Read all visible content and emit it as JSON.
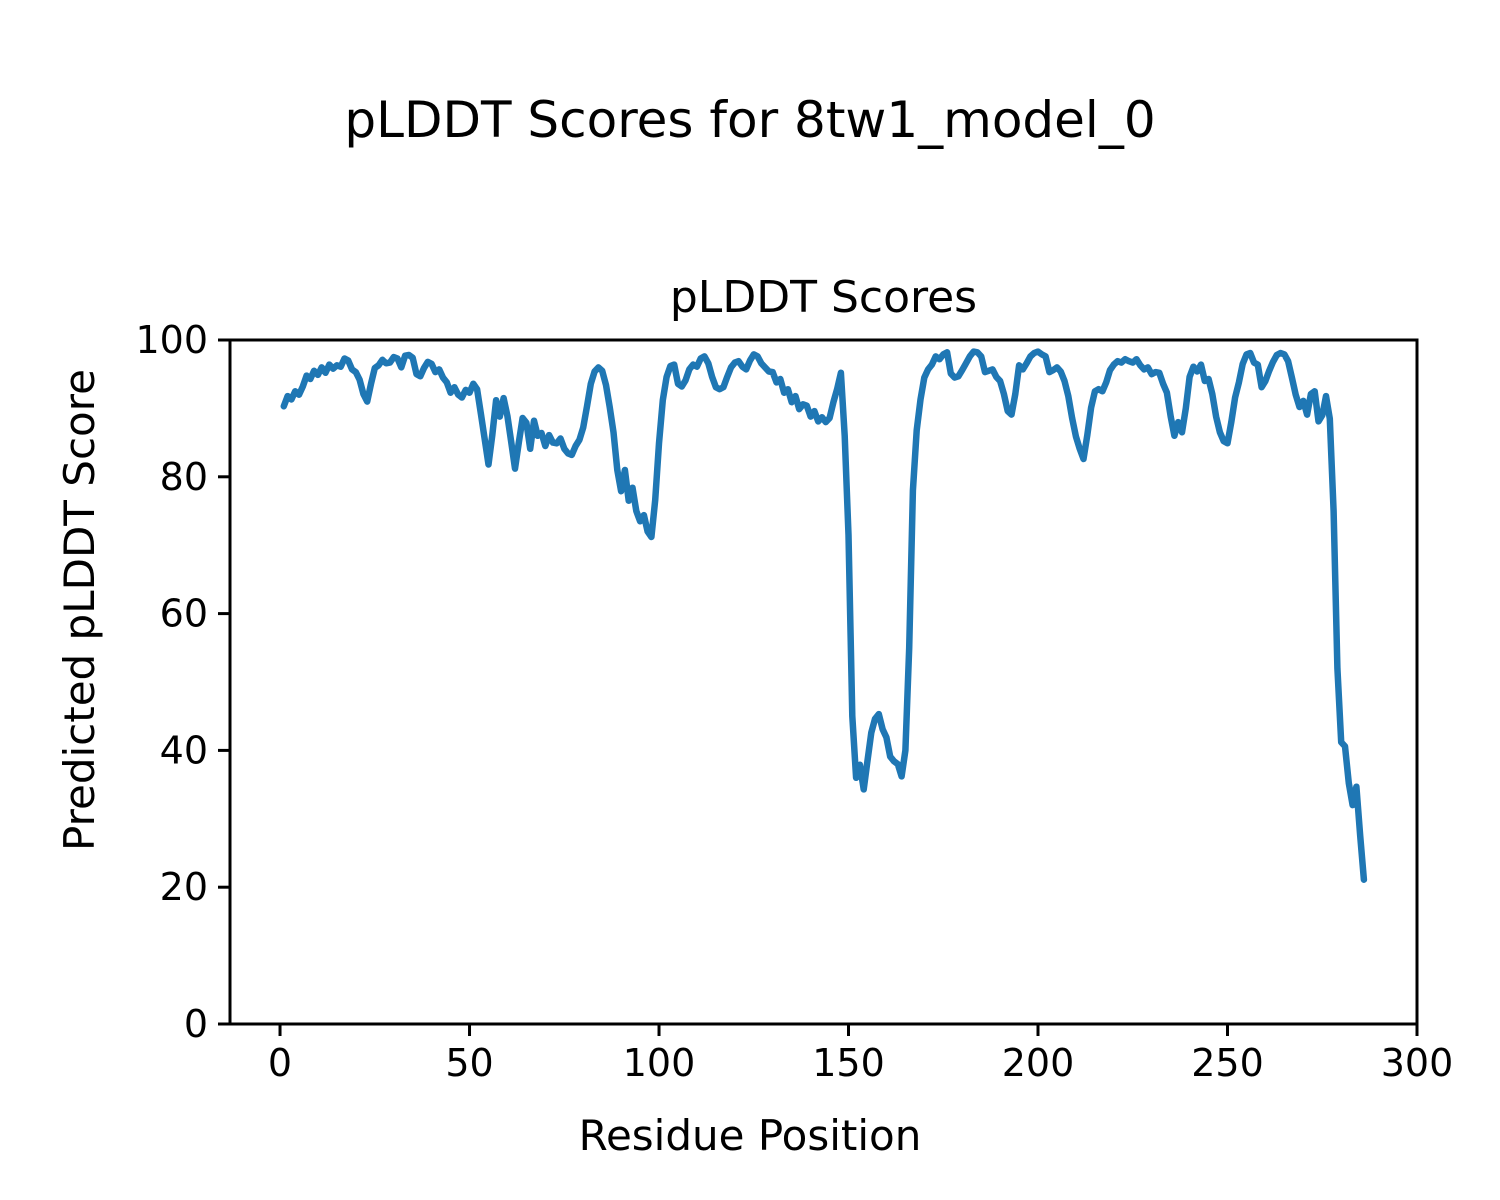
{
  "figure": {
    "suptitle": "pLDDT Scores for 8tw1_model_0",
    "background_color": "#ffffff",
    "text_color": "#000000"
  },
  "chart_data": {
    "type": "line",
    "title": "pLDDT Scores",
    "xlabel": "Residue Position",
    "ylabel": "Predicted pLDDT Score",
    "xlim": [
      -13.2,
      300
    ],
    "ylim": [
      0,
      100
    ],
    "x_ticks": [
      0,
      50,
      100,
      150,
      200,
      250,
      300
    ],
    "y_ticks": [
      0,
      20,
      40,
      60,
      80,
      100
    ],
    "grid": false,
    "legend_position": "none",
    "line_color": "#1f77b4",
    "line_width": 6.5,
    "axis_color": "#000000",
    "series": [
      {
        "name": "pLDDT",
        "x_start": 1,
        "x_step": 1,
        "values": [
          90.3,
          91.8,
          91.3,
          92.5,
          92.0,
          93.2,
          94.8,
          94.3,
          95.5,
          94.9,
          96.0,
          95.2,
          96.4,
          95.8,
          96.3,
          96.1,
          97.3,
          97.0,
          95.7,
          95.3,
          94.2,
          92.1,
          91.0,
          93.6,
          95.9,
          96.3,
          97.1,
          96.6,
          96.7,
          97.5,
          97.3,
          96.0,
          97.7,
          97.8,
          97.4,
          95.0,
          94.7,
          95.9,
          96.8,
          96.5,
          95.3,
          95.7,
          94.5,
          93.8,
          92.3,
          93.1,
          92.0,
          91.6,
          92.7,
          92.3,
          93.6,
          92.8,
          89.2,
          85.5,
          81.8,
          86.1,
          91.2,
          88.8,
          91.5,
          88.9,
          85.1,
          81.2,
          85.0,
          88.6,
          87.9,
          84.1,
          88.2,
          86.0,
          86.4,
          84.5,
          86.1,
          85.0,
          84.9,
          85.6,
          84.1,
          83.4,
          83.2,
          84.5,
          85.4,
          87.2,
          90.3,
          93.6,
          95.4,
          96.0,
          95.5,
          93.4,
          90.2,
          86.5,
          81.0,
          77.9,
          81.0,
          76.5,
          78.4,
          75.0,
          73.5,
          74.4,
          72.0,
          71.2,
          76.6,
          84.9,
          91.2,
          94.6,
          96.2,
          96.4,
          93.6,
          93.2,
          94.1,
          95.7,
          96.4,
          96.1,
          97.3,
          97.6,
          96.6,
          94.6,
          93.1,
          92.8,
          93.1,
          94.6,
          96.0,
          96.7,
          96.9,
          96.1,
          95.7,
          97.0,
          97.9,
          97.6,
          96.6,
          96.0,
          95.4,
          95.3,
          93.8,
          94.3,
          92.3,
          92.8,
          90.9,
          91.8,
          89.9,
          90.6,
          90.4,
          88.8,
          89.6,
          88.1,
          88.7,
          88.0,
          88.6,
          90.9,
          92.8,
          95.2,
          86.0,
          71.5,
          45.0,
          36.0,
          37.9,
          34.3,
          38.5,
          42.6,
          44.6,
          45.3,
          43.1,
          41.9,
          39.1,
          38.4,
          38.0,
          36.2,
          40.0,
          55.0,
          78.0,
          86.8,
          91.3,
          94.5,
          95.7,
          96.4,
          97.6,
          97.2,
          97.9,
          98.2,
          95.1,
          94.5,
          94.7,
          95.6,
          96.6,
          97.6,
          98.3,
          98.2,
          97.6,
          95.3,
          95.5,
          95.7,
          94.6,
          94.0,
          92.1,
          89.6,
          89.1,
          92.1,
          96.3,
          95.7,
          96.6,
          97.6,
          98.1,
          98.3,
          97.9,
          97.6,
          95.3,
          95.6,
          96.0,
          95.4,
          94.0,
          91.8,
          88.6,
          85.9,
          84.1,
          82.6,
          86.1,
          90.1,
          92.5,
          92.8,
          92.5,
          93.8,
          95.6,
          96.4,
          96.9,
          96.7,
          97.2,
          96.9,
          96.7,
          97.2,
          96.3,
          95.7,
          96.0,
          95.0,
          95.3,
          95.2,
          93.6,
          92.3,
          88.8,
          86.0,
          88.0,
          86.5,
          90.0,
          94.6,
          96.1,
          95.4,
          96.4,
          94.0,
          94.3,
          92.1,
          88.8,
          86.5,
          85.2,
          84.9,
          88.0,
          91.6,
          93.8,
          96.5,
          97.9,
          98.1,
          96.7,
          96.4,
          93.1,
          94.0,
          95.5,
          96.8,
          97.8,
          98.1,
          97.9,
          96.9,
          94.5,
          92.0,
          90.2,
          91.1,
          89.1,
          92.1,
          92.5,
          88.1,
          89.0,
          91.8,
          88.5,
          75.0,
          52.0,
          41.2,
          40.6,
          35.2,
          32.0,
          34.7,
          27.5,
          21.1
        ]
      }
    ]
  }
}
